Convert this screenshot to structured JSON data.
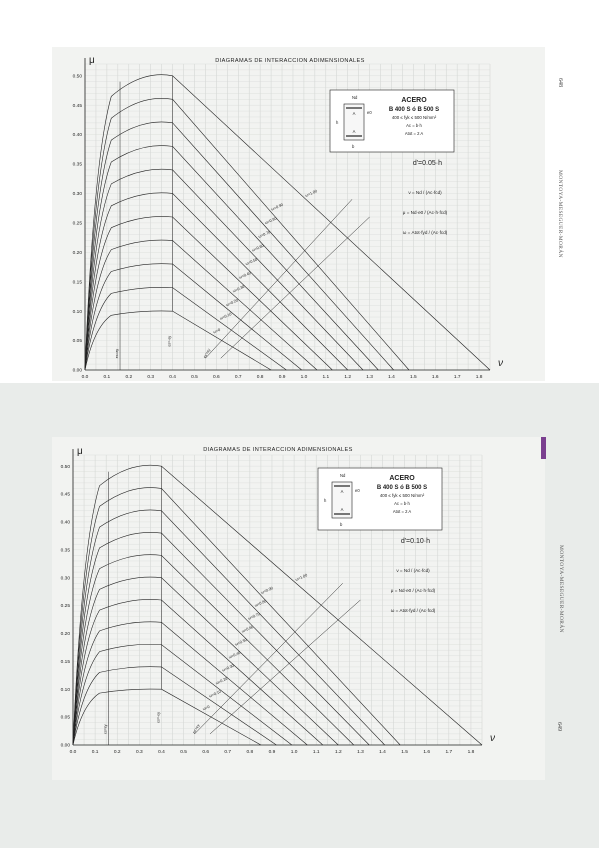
{
  "charts": [
    {
      "title": "DIAGRAMAS DE INTERACCION ADIMENSIONALES",
      "y_symbol": "μ",
      "x_symbol": "ν",
      "d_ratio": "d'=0.05·h",
      "page_number": "648",
      "side_text": "MONTOYA-MESEGUER-MORÁN",
      "box_title": "ACERO",
      "box_steel": "B 400 S ó B 500 S",
      "box_fy": "400 ≤ fyk ≤ 500 N/mm²",
      "box_ac": "Ac = b·h",
      "box_atot": "Atot = 2 A",
      "box_nd": "Nd",
      "box_ed": "e0",
      "box_h": "h",
      "box_b": "b",
      "box_a": "A",
      "formula_nu": "ν = Nd / (Ac·fcd)",
      "formula_mu": "μ = Nd·e0 / (Ac·h·fcd)",
      "formula_omega": "ω = Atot·fyd / (Ac·fcd)",
      "omega_labels": [
        "ω=1.00",
        "ω=0.90",
        "ω=0.80",
        "ω=0.70",
        "ω=0.60",
        "ω=0.50",
        "ω=0.40",
        "ω=0.30",
        "ω=0.20",
        "ω=0.10",
        "ω=0"
      ],
      "strain_labels": [
        "εs=εy",
        "εs=-εy",
        "εs'=εy"
      ]
    },
    {
      "title": "DIAGRAMAS DE INTERACCION ADIMENSIONALES",
      "y_symbol": "μ",
      "x_symbol": "ν",
      "d_ratio": "d'=0.10·h",
      "page_number": "649",
      "side_text": "MONTOYA-MESEGUER-MORÁN",
      "box_title": "ACERO",
      "box_steel": "B 400 S ó B 500 S",
      "box_fy": "400 ≤ fyk ≤ 500 N/mm²",
      "box_ac": "Ac = b·h",
      "box_atot": "Atot = 2 A",
      "box_nd": "Nd",
      "box_ed": "e0",
      "box_h": "h",
      "box_b": "b",
      "box_a": "A",
      "formula_nu": "ν = Nd / (Ac·fcd)",
      "formula_mu": "μ = Nd·e0 / (Ac·h·fcd)",
      "formula_omega": "ω = Atot·fyd / (Ac·fcd)",
      "omega_labels": [
        "ω=1.00",
        "ω=0.90",
        "ω=0.80",
        "ω=0.70",
        "ω=0.60",
        "ω=0.50",
        "ω=0.40",
        "ω=0.30",
        "ω=0.20",
        "ω=0.10",
        "ω=0"
      ],
      "strain_labels": [
        "εs=εy",
        "εs=-εy",
        "εs'=εy"
      ]
    }
  ],
  "chart_data": [
    {
      "type": "line",
      "title": "DIAGRAMAS DE INTERACCION ADIMENSIONALES",
      "xlabel": "ν",
      "ylabel": "μ",
      "xlim": [
        0.0,
        1.85
      ],
      "ylim": [
        0.0,
        0.52
      ],
      "x_ticks": [
        "0.0",
        "0.1",
        "0.2",
        "0.3",
        "0.4",
        "0.5",
        "0.6",
        "0.7",
        "0.8",
        "0.9",
        "1.0",
        "1.1",
        "1.2",
        "1.3",
        "1.4",
        "1.5",
        "1.6",
        "1.7",
        "1.8"
      ],
      "y_ticks": [
        "0.00",
        "0.05",
        "0.10",
        "0.15",
        "0.20",
        "0.25",
        "0.30",
        "0.35",
        "0.40",
        "0.45",
        "0.50"
      ],
      "grid": true,
      "series": [
        {
          "name": "ω=0",
          "peak_x": 0.4,
          "peak_y": 0.1,
          "end_x": 0.85
        },
        {
          "name": "ω=0.10",
          "peak_x": 0.4,
          "peak_y": 0.14,
          "end_x": 0.92
        },
        {
          "name": "ω=0.20",
          "peak_x": 0.4,
          "peak_y": 0.18,
          "end_x": 0.99
        },
        {
          "name": "ω=0.30",
          "peak_x": 0.4,
          "peak_y": 0.22,
          "end_x": 1.06
        },
        {
          "name": "ω=0.40",
          "peak_x": 0.4,
          "peak_y": 0.26,
          "end_x": 1.13
        },
        {
          "name": "ω=0.50",
          "peak_x": 0.4,
          "peak_y": 0.3,
          "end_x": 1.2
        },
        {
          "name": "ω=0.60",
          "peak_x": 0.4,
          "peak_y": 0.34,
          "end_x": 1.27
        },
        {
          "name": "ω=0.70",
          "peak_x": 0.4,
          "peak_y": 0.38,
          "end_x": 1.34
        },
        {
          "name": "ω=0.80",
          "peak_x": 0.4,
          "peak_y": 0.42,
          "end_x": 1.41
        },
        {
          "name": "ω=0.90",
          "peak_x": 0.4,
          "peak_y": 0.46,
          "end_x": 1.48
        },
        {
          "name": "ω=1.00",
          "peak_x": 0.4,
          "peak_y": 0.5,
          "end_x": 1.85
        }
      ]
    },
    {
      "type": "line",
      "title": "DIAGRAMAS DE INTERACCION ADIMENSIONALES",
      "xlabel": "ν",
      "ylabel": "μ",
      "xlim": [
        0.0,
        1.85
      ],
      "ylim": [
        0.0,
        0.52
      ],
      "x_ticks": [
        "0.0",
        "0.1",
        "0.2",
        "0.3",
        "0.4",
        "0.5",
        "0.6",
        "0.7",
        "0.8",
        "0.9",
        "1.0",
        "1.1",
        "1.2",
        "1.3",
        "1.4",
        "1.5",
        "1.6",
        "1.7",
        "1.8"
      ],
      "y_ticks": [
        "0.00",
        "0.05",
        "0.10",
        "0.15",
        "0.20",
        "0.25",
        "0.30",
        "0.35",
        "0.40",
        "0.45",
        "0.50"
      ],
      "grid": true,
      "series": [
        {
          "name": "ω=0",
          "peak_x": 0.4,
          "peak_y": 0.1,
          "end_x": 0.85
        },
        {
          "name": "ω=0.10",
          "peak_x": 0.4,
          "peak_y": 0.14,
          "end_x": 0.92
        },
        {
          "name": "ω=0.20",
          "peak_x": 0.4,
          "peak_y": 0.18,
          "end_x": 0.99
        },
        {
          "name": "ω=0.30",
          "peak_x": 0.4,
          "peak_y": 0.22,
          "end_x": 1.06
        },
        {
          "name": "ω=0.40",
          "peak_x": 0.4,
          "peak_y": 0.26,
          "end_x": 1.13
        },
        {
          "name": "ω=0.50",
          "peak_x": 0.4,
          "peak_y": 0.3,
          "end_x": 1.2
        },
        {
          "name": "ω=0.60",
          "peak_x": 0.4,
          "peak_y": 0.34,
          "end_x": 1.27
        },
        {
          "name": "ω=0.70",
          "peak_x": 0.4,
          "peak_y": 0.38,
          "end_x": 1.34
        },
        {
          "name": "ω=0.80",
          "peak_x": 0.4,
          "peak_y": 0.42,
          "end_x": 1.41
        },
        {
          "name": "ω=0.90",
          "peak_x": 0.4,
          "peak_y": 0.46,
          "end_x": 1.48
        },
        {
          "name": "ω=1.00",
          "peak_x": 0.4,
          "peak_y": 0.5,
          "end_x": 1.85
        }
      ]
    }
  ]
}
